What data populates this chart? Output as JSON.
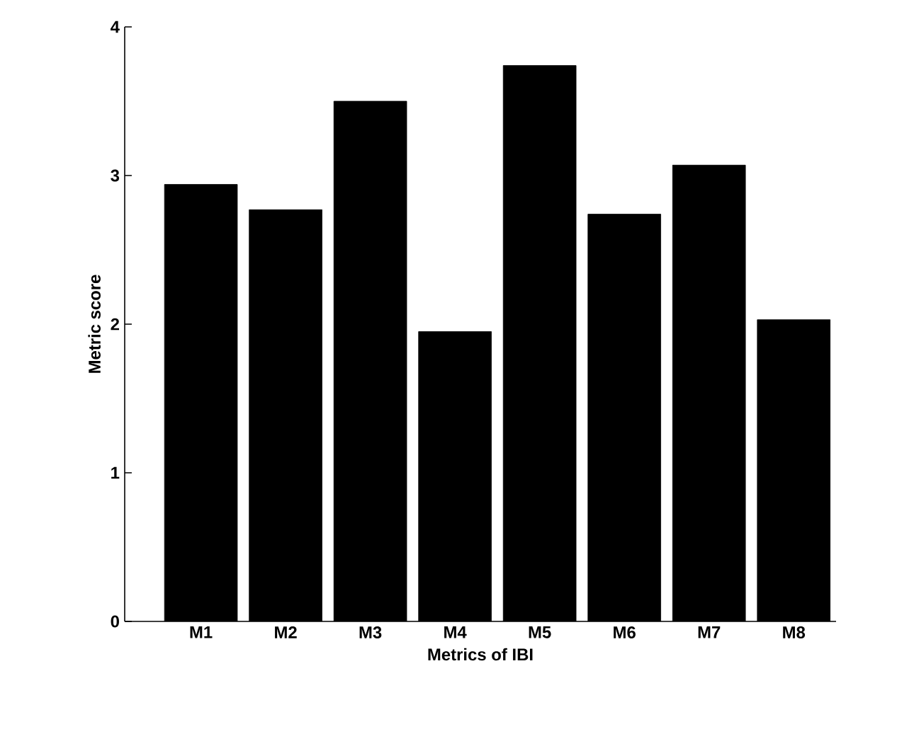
{
  "chart_data": {
    "type": "bar",
    "xlabel": "Metrics of IBI",
    "ylabel": "Metric score",
    "categories": [
      "M1",
      "M2",
      "M3",
      "M4",
      "M5",
      "M6",
      "M7",
      "M8"
    ],
    "values": [
      2.94,
      2.77,
      3.5,
      1.95,
      3.74,
      2.74,
      3.07,
      2.03
    ],
    "color": "#000000",
    "ylim": [
      0,
      4
    ],
    "yticks": [
      0,
      1,
      2,
      3,
      4
    ]
  }
}
